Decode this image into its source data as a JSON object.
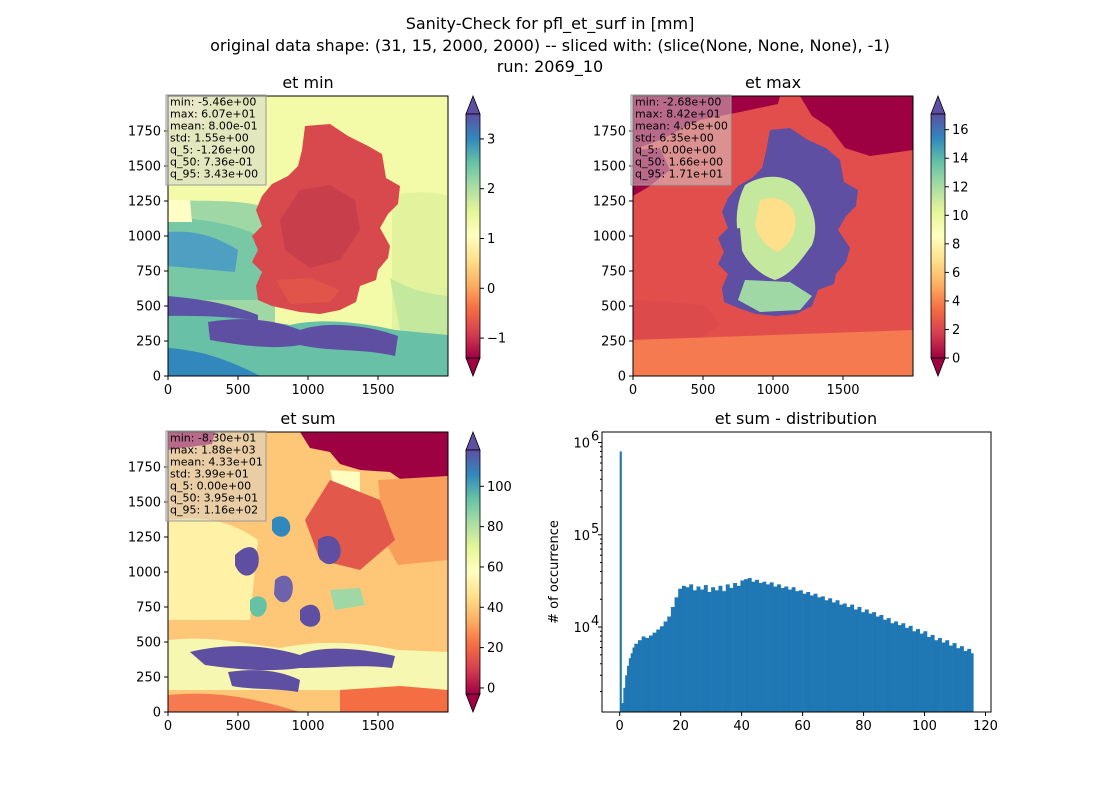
{
  "figure": {
    "suptitle": [
      "Sanity-Check for pfl_et_surf in [mm]",
      "original data shape: (31, 15, 2000, 2000) -- sliced with: (slice(None, None, None), -1)",
      "run: 2069_10"
    ],
    "colormap": "Spectral",
    "colormap_stops": [
      "#9e0142",
      "#d53e4f",
      "#f46d43",
      "#fdae61",
      "#fee08b",
      "#ffffbf",
      "#e6f598",
      "#abdda4",
      "#66c2a5",
      "#3288bd",
      "#5e4fa2"
    ],
    "mask_color": "#9e0142"
  },
  "chart_data": [
    {
      "type": "heatmap",
      "title": "et min",
      "xlim": [
        0,
        2000
      ],
      "ylim": [
        0,
        2000
      ],
      "xticks": [
        "0",
        "500",
        "1000",
        "1500"
      ],
      "yticks": [
        "0",
        "250",
        "500",
        "750",
        "1000",
        "1250",
        "1500",
        "1750"
      ],
      "colorbar": {
        "range": [
          -1.4,
          3.5
        ],
        "ticks": [
          "−1",
          "0",
          "1",
          "2",
          "3"
        ],
        "tick_values": [
          -1,
          0,
          1,
          2,
          3
        ]
      },
      "stats": [
        "min: -5.46e+00",
        "max: 6.07e+01",
        "mean: 8.00e-01",
        "std: 1.55e+00",
        "q_5: -1.26e+00",
        "q_50: 7.36e-01",
        "q_95: 3.43e+00"
      ],
      "stats_box_color": "#d3d3d3"
    },
    {
      "type": "heatmap",
      "title": "et max",
      "xlim": [
        0,
        2000
      ],
      "ylim": [
        0,
        2000
      ],
      "xticks": [
        "0",
        "500",
        "1000",
        "1500"
      ],
      "yticks": [
        "0",
        "250",
        "500",
        "750",
        "1000",
        "1250",
        "1500",
        "1750"
      ],
      "colorbar": {
        "range": [
          0,
          17.1
        ],
        "ticks": [
          "0",
          "2",
          "4",
          "6",
          "8",
          "10",
          "12",
          "14",
          "16"
        ],
        "tick_values": [
          0,
          2,
          4,
          6,
          8,
          10,
          12,
          14,
          16
        ]
      },
      "stats": [
        "min: -2.68e+00",
        "max: 8.42e+01",
        "mean: 4.05e+00",
        "std: 6.35e+00",
        "q_5: 0.00e+00",
        "q_50: 1.66e+00",
        "q_95: 1.71e+01"
      ],
      "stats_box_color": "#d3d3d3"
    },
    {
      "type": "heatmap",
      "title": "et sum",
      "xlim": [
        0,
        2000
      ],
      "ylim": [
        0,
        2000
      ],
      "xticks": [
        "0",
        "500",
        "1000",
        "1500"
      ],
      "yticks": [
        "0",
        "250",
        "500",
        "750",
        "1000",
        "1250",
        "1500",
        "1750"
      ],
      "colorbar": {
        "range": [
          -3,
          118
        ],
        "ticks": [
          "0",
          "20",
          "40",
          "60",
          "80",
          "100"
        ],
        "tick_values": [
          0,
          20,
          40,
          60,
          80,
          100
        ]
      },
      "stats": [
        "min: -8.30e+01",
        "max: 1.88e+03",
        "mean: 4.33e+01",
        "std: 3.99e+01",
        "q_5: 0.00e+00",
        "q_50: 3.95e+01",
        "q_95: 1.16e+02"
      ],
      "stats_box_color": "#d3d3d3"
    },
    {
      "type": "bar",
      "title": "et sum - distribution",
      "ylabel": "# of occurrence",
      "yscale": "log",
      "xlim": [
        -5.8,
        121.8
      ],
      "ylim": [
        1200,
        1300000
      ],
      "xticks": [
        0,
        20,
        40,
        60,
        80,
        100,
        120
      ],
      "yticks": [
        {
          "value": 10000,
          "base": "10",
          "exp": "4"
        },
        {
          "value": 100000,
          "base": "10",
          "exp": "5"
        },
        {
          "value": 1000000,
          "base": "10",
          "exp": "6"
        }
      ],
      "bar_color": "#1f77b4",
      "bin_width": 0.6,
      "x_range": [
        0,
        116
      ],
      "bins": [
        [
          0,
          800000
        ],
        [
          0.6,
          1500
        ],
        [
          1.2,
          2200
        ],
        [
          1.8,
          3000
        ],
        [
          2.4,
          3800
        ],
        [
          3,
          4600
        ],
        [
          3.6,
          5200
        ],
        [
          4.2,
          6000
        ],
        [
          4.8,
          6600
        ],
        [
          6,
          7200
        ],
        [
          7.2,
          7900
        ],
        [
          8.4,
          7600
        ],
        [
          9.6,
          8100
        ],
        [
          10.8,
          8700
        ],
        [
          12,
          9400
        ],
        [
          13.2,
          10200
        ],
        [
          14.4,
          11500
        ],
        [
          15.6,
          13000
        ],
        [
          16.8,
          16500
        ],
        [
          18,
          21000
        ],
        [
          19.2,
          26000
        ],
        [
          20.4,
          28000
        ],
        [
          21.6,
          27000
        ],
        [
          22.8,
          29000
        ],
        [
          24,
          25000
        ],
        [
          25.2,
          27500
        ],
        [
          26.4,
          25500
        ],
        [
          27.6,
          28500
        ],
        [
          28.8,
          24000
        ],
        [
          30,
          27000
        ],
        [
          31.2,
          25000
        ],
        [
          32.4,
          28000
        ],
        [
          33.6,
          24500
        ],
        [
          34.8,
          29000
        ],
        [
          36,
          26500
        ],
        [
          37.2,
          30000
        ],
        [
          38.4,
          28000
        ],
        [
          39.6,
          32000
        ],
        [
          40.8,
          33000
        ],
        [
          42,
          34000
        ],
        [
          43.2,
          31000
        ],
        [
          44.4,
          32500
        ],
        [
          45.6,
          30000
        ],
        [
          46.8,
          31000
        ],
        [
          48,
          29000
        ],
        [
          49.2,
          30500
        ],
        [
          50.4,
          27500
        ],
        [
          51.6,
          29000
        ],
        [
          52.8,
          26500
        ],
        [
          54,
          27500
        ],
        [
          55.2,
          25500
        ],
        [
          56.4,
          27000
        ],
        [
          57.6,
          24500
        ],
        [
          58.8,
          25000
        ],
        [
          60,
          23000
        ],
        [
          61.2,
          24000
        ],
        [
          62.4,
          22000
        ],
        [
          63.6,
          23000
        ],
        [
          64.8,
          21000
        ],
        [
          66,
          21500
        ],
        [
          67.2,
          19500
        ],
        [
          68.4,
          20500
        ],
        [
          69.6,
          18500
        ],
        [
          70.8,
          19500
        ],
        [
          72,
          17500
        ],
        [
          73.2,
          18000
        ],
        [
          74.4,
          16500
        ],
        [
          75.6,
          17500
        ],
        [
          76.8,
          15500
        ],
        [
          78,
          16500
        ],
        [
          79.2,
          14500
        ],
        [
          80.4,
          15500
        ],
        [
          81.6,
          14000
        ],
        [
          82.8,
          14500
        ],
        [
          84,
          13000
        ],
        [
          85.2,
          13500
        ],
        [
          86.4,
          12000
        ],
        [
          87.6,
          12500
        ],
        [
          88.8,
          11000
        ],
        [
          90,
          11500
        ],
        [
          91.2,
          10500
        ],
        [
          92.4,
          11000
        ],
        [
          93.6,
          9800
        ],
        [
          94.8,
          10300
        ],
        [
          96,
          9000
        ],
        [
          97.2,
          9500
        ],
        [
          98.4,
          8500
        ],
        [
          99.6,
          9000
        ],
        [
          100.8,
          7800
        ],
        [
          102,
          8200
        ],
        [
          103.2,
          7200
        ],
        [
          104.4,
          7600
        ],
        [
          105.6,
          6800
        ],
        [
          106.8,
          7200
        ],
        [
          108,
          6300
        ],
        [
          109.2,
          6700
        ],
        [
          110.4,
          5900
        ],
        [
          111.6,
          6200
        ],
        [
          112.8,
          5500
        ],
        [
          114,
          5800
        ],
        [
          115.2,
          5200
        ]
      ]
    }
  ]
}
